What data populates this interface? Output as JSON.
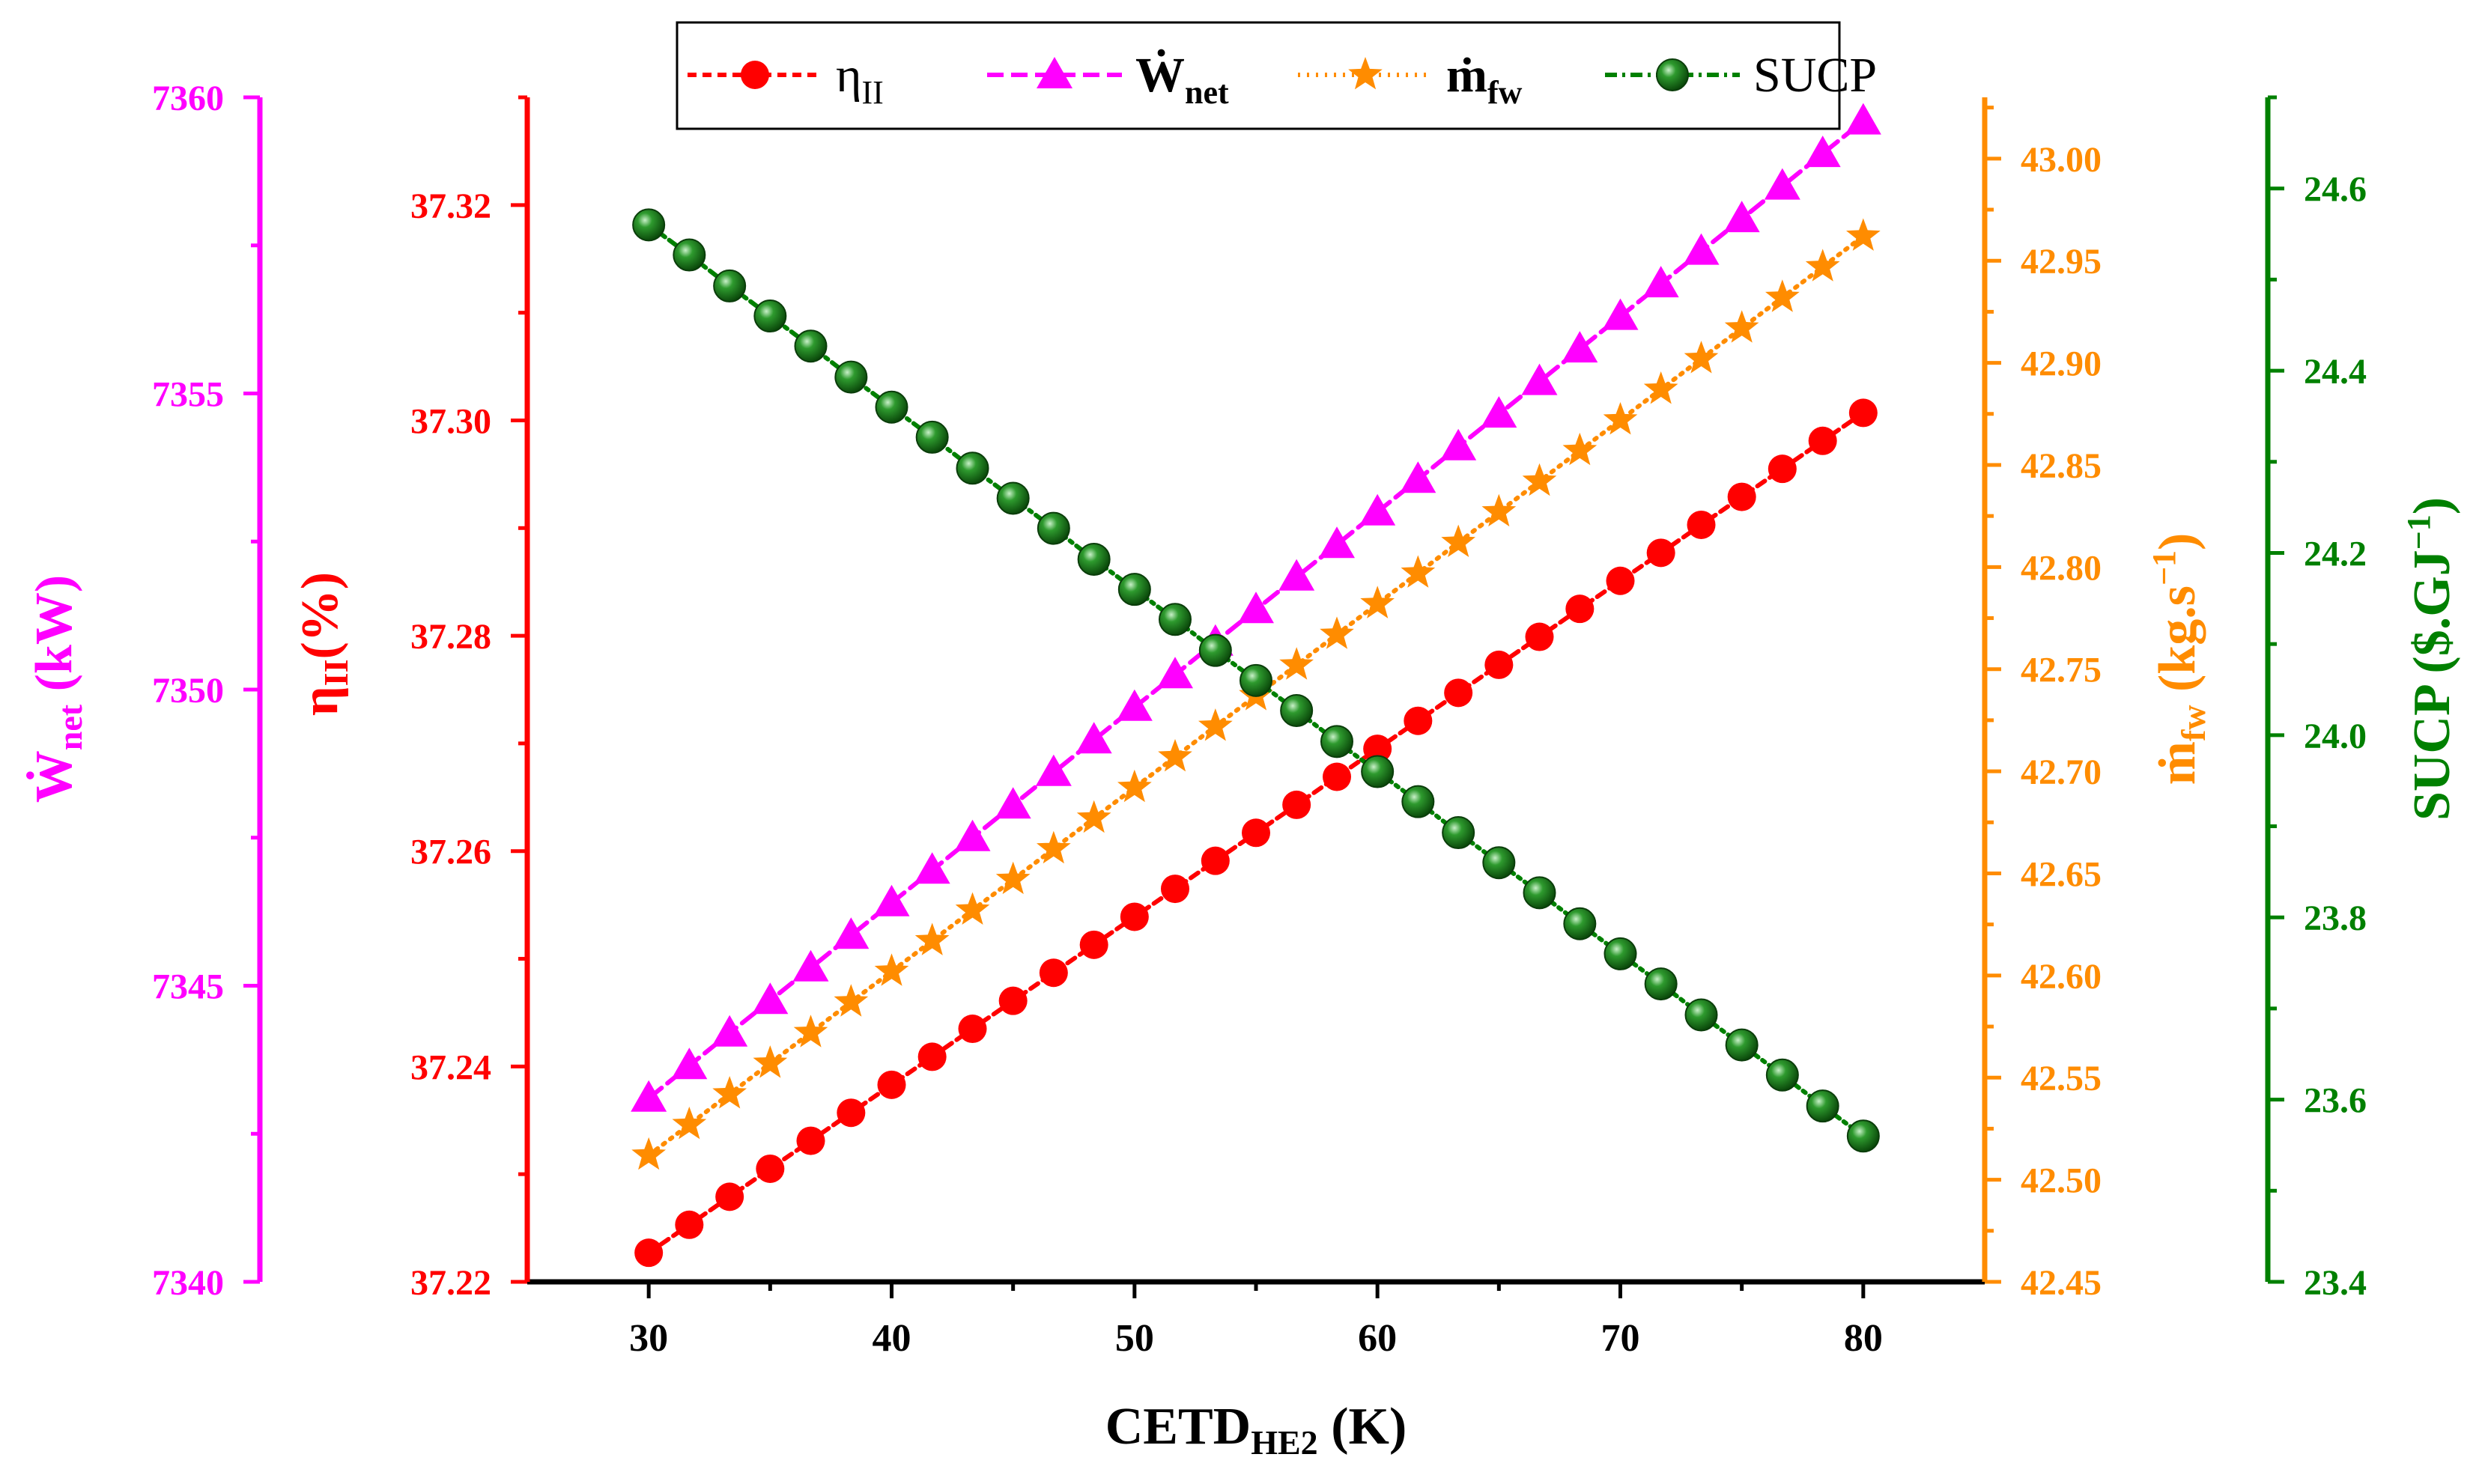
{
  "chart_data": {
    "type": "line",
    "x": [
      30,
      31.67,
      33.33,
      35,
      36.67,
      38.33,
      40,
      41.67,
      43.33,
      45,
      46.67,
      48.33,
      50,
      51.67,
      53.33,
      55,
      56.67,
      58.33,
      60,
      61.67,
      63.33,
      65,
      66.67,
      68.33,
      70,
      71.67,
      73.33,
      75,
      76.67,
      78.33,
      80
    ],
    "xlabel": "CETD",
    "xlabel_sub": "HE2",
    "xlabel_unit": " (K)",
    "xlim": [
      25,
      85
    ],
    "xticks": [
      "30",
      "40",
      "50",
      "60",
      "70",
      "80"
    ],
    "axes": [
      {
        "id": "eta",
        "label_main": "η",
        "label_sub": "II",
        "label_unit": "(%)",
        "color": "#ff0000",
        "ylim": [
          37.22,
          37.33
        ],
        "ticks": [
          "37.22",
          "37.24",
          "37.26",
          "37.28",
          "37.30",
          "37.32"
        ],
        "minor_step": 0.01
      },
      {
        "id": "wnet",
        "label_main": "Ẇ",
        "label_sub": "net",
        "label_unit": " (kW)",
        "color": "#ff00ff",
        "ylim": [
          7340,
          7360
        ],
        "ticks": [
          "7340",
          "7345",
          "7350",
          "7355",
          "7360"
        ],
        "minor_step": 2.5
      },
      {
        "id": "mfw",
        "label_main": "ṁ",
        "label_sub": "fw",
        "label_unit": " (kg.s",
        "label_sup": "−1",
        "label_end": ")",
        "color": "#ff8c00",
        "ylim": [
          42.45,
          43.03
        ],
        "ticks": [
          "42.45",
          "42.50",
          "42.55",
          "42.60",
          "42.65",
          "42.70",
          "42.75",
          "42.80",
          "42.85",
          "42.90",
          "42.95",
          "43.00"
        ],
        "minor_step": 0.025
      },
      {
        "id": "sucp",
        "label_main": "SUCP",
        "label_unit": " ($.GJ",
        "label_sup": "−1",
        "label_end": ")",
        "color": "#008000",
        "ylim": [
          23.4,
          24.7
        ],
        "ticks": [
          "23.4",
          "23.6",
          "23.8",
          "24.0",
          "24.2",
          "24.4",
          "24.6"
        ],
        "minor_step": 0.1
      }
    ],
    "series": [
      {
        "name": "η",
        "name_sub": "II",
        "axis": "eta",
        "color": "#ff0000",
        "marker": "circle",
        "dash": "12,8",
        "values": [
          37.2227,
          37.2253,
          37.2279,
          37.2305,
          37.2331,
          37.2357,
          37.2383,
          37.2409,
          37.2435,
          37.2461,
          37.2487,
          37.2513,
          37.2539,
          37.2565,
          37.2591,
          37.2617,
          37.2643,
          37.2669,
          37.2695,
          37.2721,
          37.2747,
          37.2773,
          37.2799,
          37.2825,
          37.2851,
          37.2877,
          37.2903,
          37.2929,
          37.2955,
          37.2981,
          37.3007
        ]
      },
      {
        "name": "Ẇ",
        "name_sub": "net",
        "axis": "wnet",
        "color": "#ff00ff",
        "marker": "triangle",
        "dash": "22,10",
        "values": [
          7343.1,
          7343.65,
          7344.2,
          7344.75,
          7345.3,
          7345.85,
          7346.4,
          7346.95,
          7347.5,
          7348.05,
          7348.6,
          7349.15,
          7349.7,
          7350.25,
          7350.8,
          7351.35,
          7351.9,
          7352.45,
          7353.0,
          7353.55,
          7354.1,
          7354.65,
          7355.2,
          7355.75,
          7356.3,
          7356.85,
          7357.4,
          7357.95,
          7358.5,
          7359.05,
          7359.6
        ]
      },
      {
        "name": "ṁ",
        "name_sub": "fw",
        "axis": "mfw",
        "color": "#ff8c00",
        "marker": "star",
        "dash": "3,9",
        "values": [
          42.512,
          42.527,
          42.542,
          42.557,
          42.572,
          42.587,
          42.602,
          42.617,
          42.632,
          42.647,
          42.662,
          42.677,
          42.692,
          42.707,
          42.722,
          42.737,
          42.752,
          42.767,
          42.782,
          42.797,
          42.812,
          42.827,
          42.842,
          42.857,
          42.872,
          42.887,
          42.902,
          42.917,
          42.932,
          42.947,
          42.962
        ]
      },
      {
        "name": "SUCP",
        "axis": "sucp",
        "color": "#008000",
        "marker": "sphere",
        "dash": "16,7,4,7",
        "values": [
          24.56,
          24.527,
          24.493,
          24.46,
          24.427,
          24.393,
          24.36,
          24.327,
          24.293,
          24.26,
          24.227,
          24.193,
          24.16,
          24.127,
          24.093,
          24.06,
          24.027,
          23.993,
          23.96,
          23.927,
          23.893,
          23.86,
          23.827,
          23.793,
          23.76,
          23.727,
          23.693,
          23.66,
          23.627,
          23.593,
          23.56
        ]
      }
    ],
    "legend_position": "top-center"
  }
}
